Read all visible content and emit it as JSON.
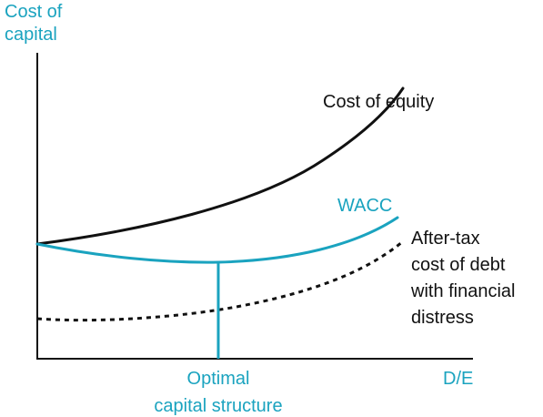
{
  "chart_data": {
    "type": "line",
    "title": "",
    "ylabel": [
      "Cost of",
      "capital"
    ],
    "xlabel": "D/E",
    "series": [
      {
        "name": "Cost of equity"
      },
      {
        "name": "WACC"
      },
      {
        "name": [
          "After-tax",
          "cost of debt",
          "with financial",
          "distress"
        ]
      }
    ],
    "annotations": {
      "optimal": [
        "Optimal",
        "capital structure"
      ]
    },
    "grid": false,
    "legend": "none"
  },
  "colors": {
    "accent": "#1aa3bf",
    "ink": "#111111"
  }
}
